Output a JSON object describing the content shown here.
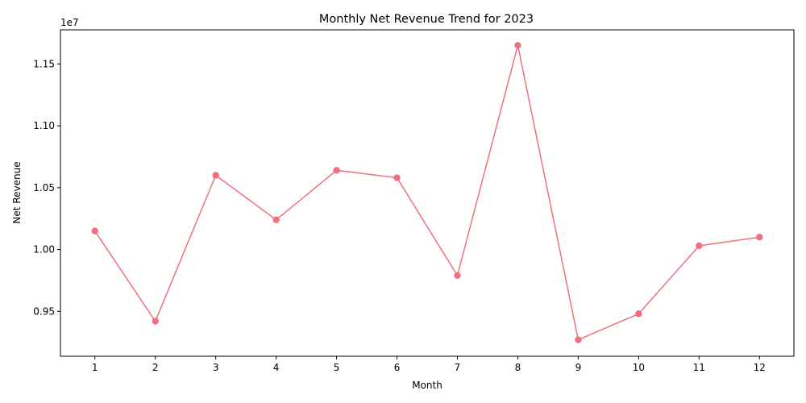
{
  "chart_data": {
    "type": "line",
    "title": "Monthly Net Revenue Trend for 2023",
    "xlabel": "Month",
    "ylabel": "Net Revenue",
    "y_offset_label": "1e7",
    "x": [
      1,
      2,
      3,
      4,
      5,
      6,
      7,
      8,
      9,
      10,
      11,
      12
    ],
    "x_tick_labels": [
      "1",
      "2",
      "3",
      "4",
      "5",
      "6",
      "7",
      "8",
      "9",
      "10",
      "11",
      "12"
    ],
    "series": [
      {
        "values": [
          10150000,
          9420000,
          10600000,
          10240000,
          10640000,
          10580000,
          9790000,
          11650000,
          9270000,
          9480000,
          10030000,
          10100000
        ],
        "color": "#f0707f",
        "marker": "circle"
      }
    ],
    "y_ticks": [
      0.95,
      1.0,
      1.05,
      1.1,
      1.15
    ],
    "y_tick_labels": [
      "0.95",
      "1.00",
      "1.05",
      "1.10",
      "1.15"
    ],
    "y_tick_scale": 10000000,
    "xlim": [
      0.43,
      12.57
    ],
    "ylim": [
      9137000,
      11776000
    ],
    "grid": false,
    "legend": "none"
  }
}
